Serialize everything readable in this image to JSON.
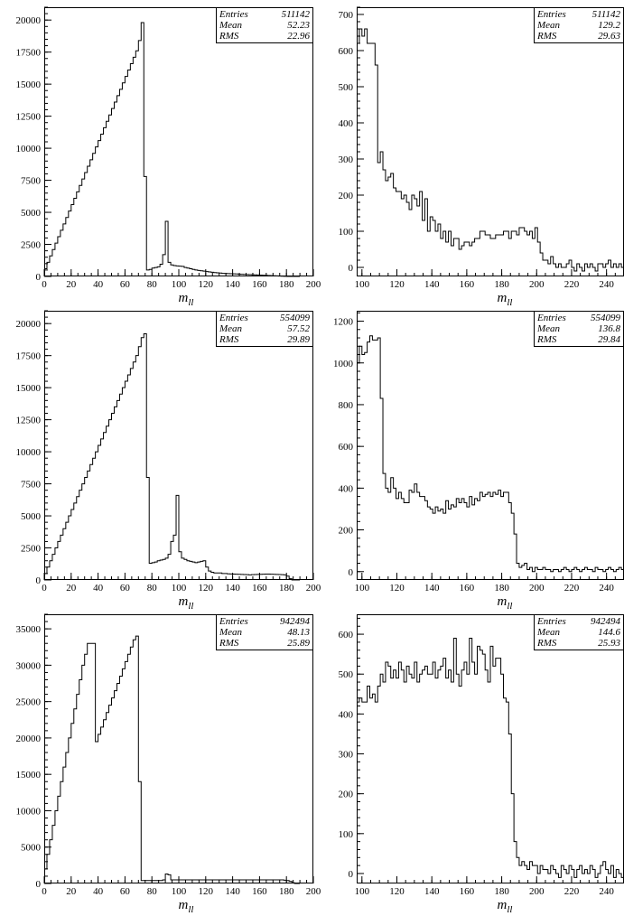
{
  "chart_data": [
    {
      "type": "histogram",
      "xlabel": "m_ll",
      "xlim": [
        0,
        200
      ],
      "ylim": [
        0,
        21000
      ],
      "xticks": [
        0,
        20,
        40,
        60,
        80,
        100,
        120,
        140,
        160,
        180,
        200
      ],
      "yticks": [
        0,
        2500,
        5000,
        7500,
        10000,
        12500,
        15000,
        17500,
        20000
      ],
      "bin_width": 2,
      "bin_start": 0,
      "values": [
        600,
        1100,
        1600,
        2100,
        2600,
        3100,
        3600,
        4100,
        4600,
        5100,
        5600,
        6100,
        6600,
        7100,
        7600,
        8100,
        8600,
        9100,
        9600,
        10100,
        10600,
        11100,
        11600,
        12100,
        12600,
        13100,
        13600,
        14100,
        14600,
        15100,
        15600,
        16100,
        16600,
        17100,
        17600,
        18400,
        19800,
        7800,
        500,
        550,
        650,
        700,
        750,
        950,
        1700,
        4300,
        1100,
        900,
        850,
        820,
        800,
        780,
        700,
        650,
        600,
        550,
        500,
        470,
        440,
        410,
        380,
        350,
        330,
        300,
        280,
        260,
        240,
        230,
        220,
        210,
        200,
        190,
        180,
        170,
        160,
        150,
        140,
        130,
        120,
        110,
        100,
        90,
        80,
        70,
        60,
        50,
        40,
        30,
        20,
        10,
        0,
        0,
        0,
        0,
        0
      ],
      "stats": {
        "entries_label": "Entries",
        "entries": "511142",
        "mean_label": "Mean",
        "mean": "52.23",
        "rms_label": "RMS",
        "rms": "22.96"
      }
    },
    {
      "type": "histogram",
      "xlabel": "m_ll",
      "xlim": [
        97,
        250
      ],
      "ylim": [
        -25,
        720
      ],
      "xticks": [
        100,
        120,
        140,
        160,
        180,
        200,
        220,
        240
      ],
      "yticks": [
        0,
        100,
        200,
        300,
        400,
        500,
        600,
        700
      ],
      "bin_width": 1.5,
      "bin_start": 97,
      "values": [
        620,
        660,
        640,
        660,
        620,
        620,
        620,
        560,
        290,
        320,
        270,
        240,
        250,
        260,
        220,
        210,
        210,
        190,
        200,
        180,
        160,
        200,
        190,
        170,
        210,
        130,
        190,
        100,
        140,
        130,
        100,
        120,
        80,
        100,
        70,
        100,
        60,
        80,
        80,
        50,
        60,
        70,
        70,
        60,
        70,
        80,
        80,
        100,
        100,
        90,
        90,
        80,
        80,
        90,
        90,
        90,
        100,
        100,
        80,
        100,
        100,
        90,
        110,
        110,
        100,
        90,
        100,
        80,
        110,
        70,
        40,
        20,
        20,
        10,
        30,
        10,
        0,
        10,
        0,
        0,
        10,
        20,
        0,
        -10,
        10,
        0,
        -10,
        10,
        0,
        10,
        0,
        -10,
        10,
        10,
        0,
        10,
        20,
        0,
        10,
        0,
        10,
        0
      ],
      "stats": {
        "entries_label": "Entries",
        "entries": "511142",
        "mean_label": "Mean",
        "mean": "129.2",
        "rms_label": "RMS",
        "rms": "29.63"
      }
    },
    {
      "type": "histogram",
      "xlabel": "m_ll",
      "xlim": [
        0,
        200
      ],
      "ylim": [
        0,
        21000
      ],
      "xticks": [
        0,
        20,
        40,
        60,
        80,
        100,
        120,
        140,
        160,
        180,
        200
      ],
      "yticks": [
        0,
        2500,
        5000,
        7500,
        10000,
        12500,
        15000,
        17500,
        20000
      ],
      "bin_width": 2,
      "bin_start": 0,
      "values": [
        500,
        1000,
        1500,
        2000,
        2500,
        3000,
        3500,
        4000,
        4500,
        5000,
        5500,
        6000,
        6500,
        7000,
        7500,
        8000,
        8500,
        9000,
        9500,
        10000,
        10500,
        11000,
        11500,
        12000,
        12500,
        13000,
        13500,
        14000,
        14500,
        15000,
        15500,
        16000,
        16500,
        17000,
        17500,
        18200,
        18900,
        19200,
        8000,
        1300,
        1350,
        1400,
        1500,
        1550,
        1600,
        1700,
        2000,
        3000,
        3500,
        6600,
        2200,
        1700,
        1600,
        1500,
        1450,
        1400,
        1350,
        1400,
        1450,
        1500,
        1000,
        700,
        600,
        550,
        550,
        550,
        500,
        500,
        480,
        470,
        460,
        450,
        440,
        430,
        420,
        410,
        400,
        410,
        420,
        430,
        440,
        450,
        460,
        460,
        450,
        440,
        430,
        420,
        410,
        400,
        300,
        100,
        0,
        0,
        0
      ],
      "stats": {
        "entries_label": "Entries",
        "entries": "554099",
        "mean_label": "Mean",
        "mean": "57.52",
        "rms_label": "RMS",
        "rms": "29.89"
      }
    },
    {
      "type": "histogram",
      "xlabel": "m_ll",
      "xlim": [
        97,
        250
      ],
      "ylim": [
        -40,
        1250
      ],
      "xticks": [
        100,
        120,
        140,
        160,
        180,
        200,
        220,
        240
      ],
      "yticks": [
        0,
        200,
        400,
        600,
        800,
        1000,
        1200
      ],
      "bin_width": 1.5,
      "bin_start": 97,
      "values": [
        1000,
        1080,
        1040,
        1050,
        1100,
        1130,
        1110,
        1110,
        1120,
        830,
        470,
        400,
        380,
        450,
        400,
        350,
        380,
        350,
        330,
        330,
        390,
        380,
        420,
        380,
        360,
        360,
        340,
        310,
        300,
        280,
        310,
        290,
        300,
        280,
        340,
        300,
        320,
        310,
        350,
        330,
        350,
        330,
        310,
        360,
        320,
        350,
        340,
        380,
        360,
        370,
        380,
        360,
        380,
        370,
        390,
        360,
        380,
        380,
        330,
        280,
        180,
        40,
        20,
        30,
        40,
        10,
        20,
        0,
        20,
        10,
        10,
        20,
        10,
        10,
        0,
        10,
        10,
        0,
        10,
        20,
        10,
        0,
        10,
        20,
        10,
        0,
        10,
        20,
        10,
        10,
        0,
        20,
        10,
        10,
        0,
        10,
        20,
        10,
        0,
        10,
        20,
        10
      ],
      "stats": {
        "entries_label": "Entries",
        "entries": "554099",
        "mean_label": "Mean",
        "mean": "136.8",
        "rms_label": "RMS",
        "rms": "29.84"
      }
    },
    {
      "type": "histogram",
      "xlabel": "m_ll",
      "xlim": [
        0,
        200
      ],
      "ylim": [
        0,
        37000
      ],
      "xticks": [
        0,
        20,
        40,
        60,
        80,
        100,
        120,
        140,
        160,
        180,
        200
      ],
      "yticks": [
        0,
        5000,
        10000,
        15000,
        20000,
        25000,
        30000,
        35000
      ],
      "bin_width": 2,
      "bin_start": 0,
      "values": [
        2000,
        4000,
        6000,
        8000,
        10000,
        12000,
        14000,
        16000,
        18000,
        20000,
        22000,
        24000,
        26000,
        28000,
        30000,
        31500,
        33000,
        33000,
        33000,
        19500,
        20500,
        21500,
        22500,
        23500,
        24500,
        25500,
        26500,
        27500,
        28500,
        29500,
        30500,
        31500,
        32500,
        33500,
        34000,
        14000,
        400,
        400,
        400,
        400,
        400,
        400,
        400,
        400,
        500,
        1300,
        1200,
        500,
        500,
        500,
        500,
        500,
        500,
        500,
        500,
        500,
        500,
        500,
        500,
        500,
        500,
        500,
        500,
        500,
        500,
        500,
        500,
        500,
        500,
        500,
        500,
        500,
        500,
        500,
        500,
        500,
        500,
        500,
        500,
        500,
        500,
        500,
        500,
        500,
        500,
        500,
        500,
        500,
        500,
        450,
        400,
        300,
        100,
        0,
        0
      ],
      "stats": {
        "entries_label": "Entries",
        "entries": "942494",
        "mean_label": "Mean",
        "mean": "48.13",
        "rms_label": "RMS",
        "rms": "25.89"
      }
    },
    {
      "type": "histogram",
      "xlabel": "m_ll",
      "xlim": [
        97,
        250
      ],
      "ylim": [
        -25,
        650
      ],
      "xticks": [
        100,
        120,
        140,
        160,
        180,
        200,
        220,
        240
      ],
      "yticks": [
        0,
        100,
        200,
        300,
        400,
        500,
        600
      ],
      "bin_width": 1.5,
      "bin_start": 97,
      "values": [
        430,
        440,
        430,
        430,
        470,
        440,
        450,
        430,
        470,
        500,
        480,
        530,
        520,
        490,
        510,
        490,
        530,
        510,
        480,
        520,
        500,
        490,
        530,
        480,
        500,
        510,
        520,
        500,
        500,
        530,
        490,
        510,
        520,
        540,
        490,
        510,
        480,
        590,
        500,
        470,
        510,
        530,
        500,
        590,
        530,
        500,
        570,
        560,
        550,
        510,
        480,
        570,
        520,
        540,
        540,
        500,
        440,
        430,
        350,
        200,
        80,
        40,
        20,
        30,
        20,
        10,
        30,
        20,
        20,
        0,
        20,
        10,
        10,
        0,
        20,
        10,
        0,
        -10,
        20,
        10,
        0,
        20,
        10,
        -10,
        10,
        20,
        0,
        10,
        0,
        20,
        10,
        -10,
        0,
        20,
        30,
        10,
        0,
        20,
        -10,
        10,
        0,
        -10
      ],
      "stats": {
        "entries_label": "Entries",
        "entries": "942494",
        "mean_label": "Mean",
        "mean": "144.6",
        "rms_label": "RMS",
        "rms": "25.93"
      }
    }
  ]
}
